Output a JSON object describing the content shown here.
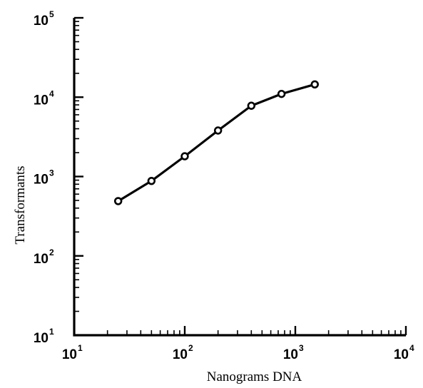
{
  "chart_data": {
    "type": "line",
    "xlabel": "Nanograms DNA",
    "ylabel": "Transformants",
    "xscale": "log",
    "yscale": "log",
    "xlim": [
      10,
      10000
    ],
    "ylim": [
      10,
      100000
    ],
    "x_ticks": [
      {
        "base": "10",
        "exp": "1",
        "value": 10
      },
      {
        "base": "10",
        "exp": "2",
        "value": 100
      },
      {
        "base": "10",
        "exp": "3",
        "value": 1000
      },
      {
        "base": "10",
        "exp": "4",
        "value": 10000
      }
    ],
    "y_ticks": [
      {
        "base": "10",
        "exp": "1",
        "value": 10
      },
      {
        "base": "10",
        "exp": "2",
        "value": 100
      },
      {
        "base": "10",
        "exp": "3",
        "value": 1000
      },
      {
        "base": "10",
        "exp": "4",
        "value": 10000
      },
      {
        "base": "10",
        "exp": "5",
        "value": 100000
      }
    ],
    "grid": false,
    "marker": "open-circle",
    "series": [
      {
        "x": [
          25,
          50,
          100,
          200,
          400,
          750,
          1500
        ],
        "y": [
          490,
          880,
          1800,
          3800,
          7800,
          11000,
          14500
        ]
      }
    ]
  }
}
